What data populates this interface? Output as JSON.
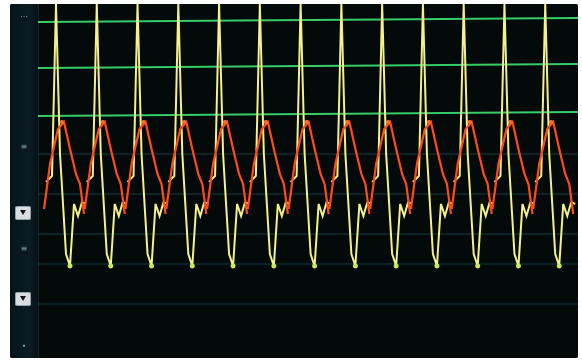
{
  "window": {
    "background": "#04090a"
  },
  "left_panel": {
    "labels": [
      "⋯",
      "≡",
      "▣",
      "≡",
      "▾",
      "•"
    ]
  },
  "traces": {
    "ecg_color": "#f4f08a",
    "arterial_color": "#ff4a1a",
    "grid_color": "#3ff07a",
    "baseline_color": "#1f5e63",
    "beats": 13
  }
}
